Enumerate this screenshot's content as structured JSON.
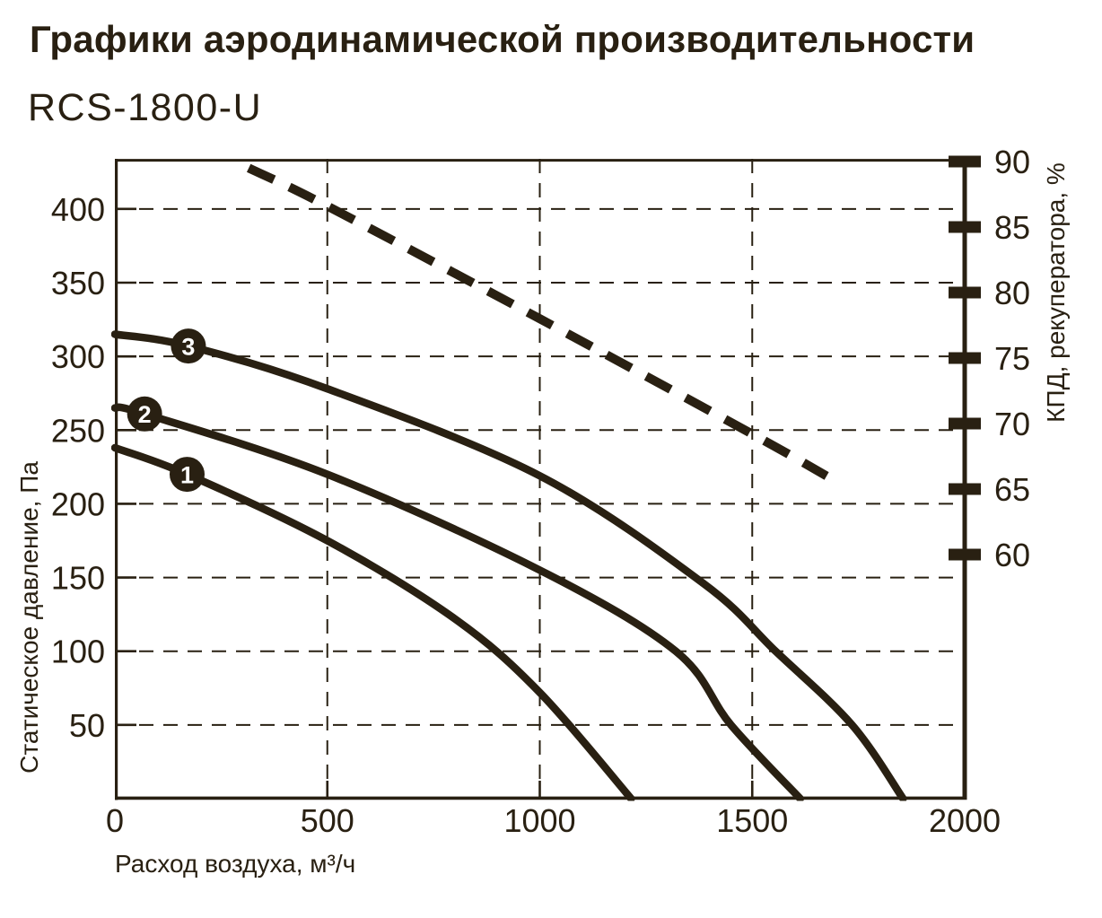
{
  "header": {
    "title": "Графики аэродинамической производительности",
    "model": "RCS-1800-U"
  },
  "chart_data": {
    "type": "line",
    "title": "Графики аэродинамической производительности",
    "subtitle": "RCS-1800-U",
    "x_axis": {
      "label": "Расход воздуха, м³/ч",
      "ticks": [
        0,
        500,
        1000,
        1500,
        2000
      ],
      "range": [
        0,
        2000
      ],
      "grid": "dashed"
    },
    "y_axis_left": {
      "label": "Статическое давление, Па",
      "ticks": [
        50,
        100,
        150,
        200,
        250,
        300,
        350,
        400
      ],
      "range": [
        0,
        434
      ],
      "grid": "dashed"
    },
    "y_axis_right": {
      "label": "КПД, рекуператора, %",
      "ticks": [
        60,
        65,
        70,
        75,
        80,
        85,
        90
      ],
      "range": [
        58.6,
        90.2
      ]
    },
    "series": [
      {
        "id": "fan-speed-1",
        "label": "1",
        "axis": "left",
        "style": "solid",
        "marker_at": [
          170,
          220
        ],
        "points": [
          [
            0,
            238
          ],
          [
            170,
            220
          ],
          [
            500,
            175
          ],
          [
            800,
            122
          ],
          [
            1000,
            72
          ],
          [
            1215,
            0
          ]
        ]
      },
      {
        "id": "fan-speed-2",
        "label": "2",
        "axis": "left",
        "style": "solid",
        "marker_at": [
          70,
          261
        ],
        "points": [
          [
            0,
            265
          ],
          [
            70,
            261
          ],
          [
            500,
            220
          ],
          [
            1000,
            155
          ],
          [
            1320,
            100
          ],
          [
            1450,
            50
          ],
          [
            1613,
            0
          ]
        ]
      },
      {
        "id": "fan-speed-3",
        "label": "3",
        "axis": "left",
        "style": "solid",
        "marker_at": [
          173,
          307
        ],
        "points": [
          [
            0,
            315
          ],
          [
            173,
            307
          ],
          [
            500,
            278
          ],
          [
            1000,
            219
          ],
          [
            1385,
            146
          ],
          [
            1555,
            100
          ],
          [
            1735,
            50
          ],
          [
            1855,
            0
          ]
        ]
      },
      {
        "id": "recuperator-efficiency",
        "label": "",
        "axis": "right",
        "style": "dashed",
        "points": [
          [
            315,
            89.5
          ],
          [
            500,
            86.6
          ],
          [
            1000,
            78
          ],
          [
            1500,
            69.2
          ],
          [
            1675,
            66
          ]
        ]
      }
    ],
    "legend": "none",
    "colors": {
      "ink": "#292012",
      "background": "#ffffff"
    }
  }
}
